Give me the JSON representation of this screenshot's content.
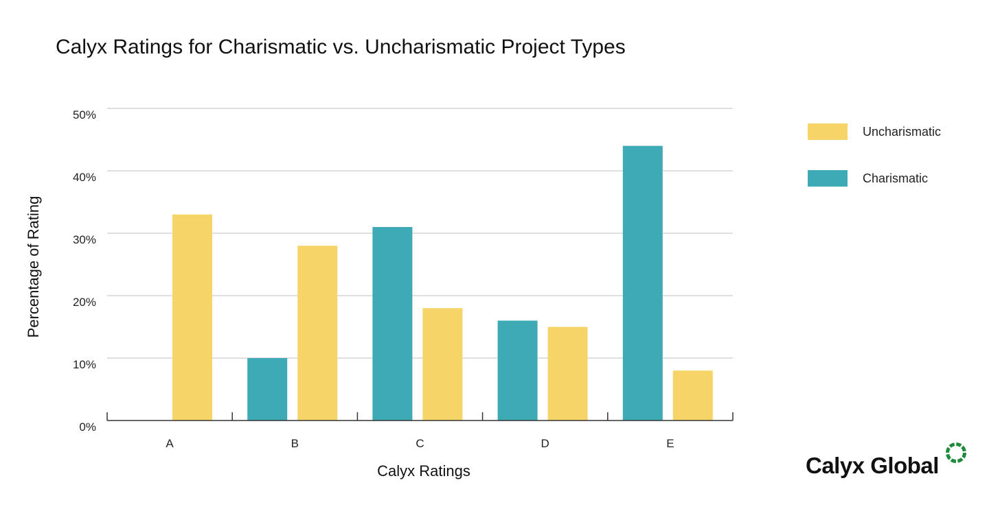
{
  "chart_data": {
    "type": "bar",
    "title": "Calyx Ratings for Charismatic vs. Uncharismatic Project Types",
    "xlabel": "Calyx Ratings",
    "ylabel": "Percentage of Rating",
    "categories": [
      "A",
      "B",
      "C",
      "D",
      "E"
    ],
    "ylim": [
      0,
      50
    ],
    "yticks": [
      0,
      10,
      20,
      30,
      40,
      50
    ],
    "ytick_labels": [
      "0%",
      "10%",
      "20%",
      "30%",
      "40%",
      "50%"
    ],
    "grid": true,
    "legend_position": "top-right",
    "series": [
      {
        "name": "Charismatic",
        "color": "#3eaab6",
        "values": [
          0,
          10,
          31,
          16,
          44
        ]
      },
      {
        "name": "Uncharismatic",
        "color": "#f6d468",
        "values": [
          33,
          28,
          18,
          15,
          8
        ]
      }
    ],
    "legend": [
      {
        "name": "Uncharismatic",
        "color": "#f6d468"
      },
      {
        "name": "Charismatic",
        "color": "#3eaab6"
      }
    ]
  },
  "brand": {
    "name": "Calyx Global",
    "logo_icon": "dashed-ring-icon",
    "logo_color": "#1e8a3c"
  }
}
